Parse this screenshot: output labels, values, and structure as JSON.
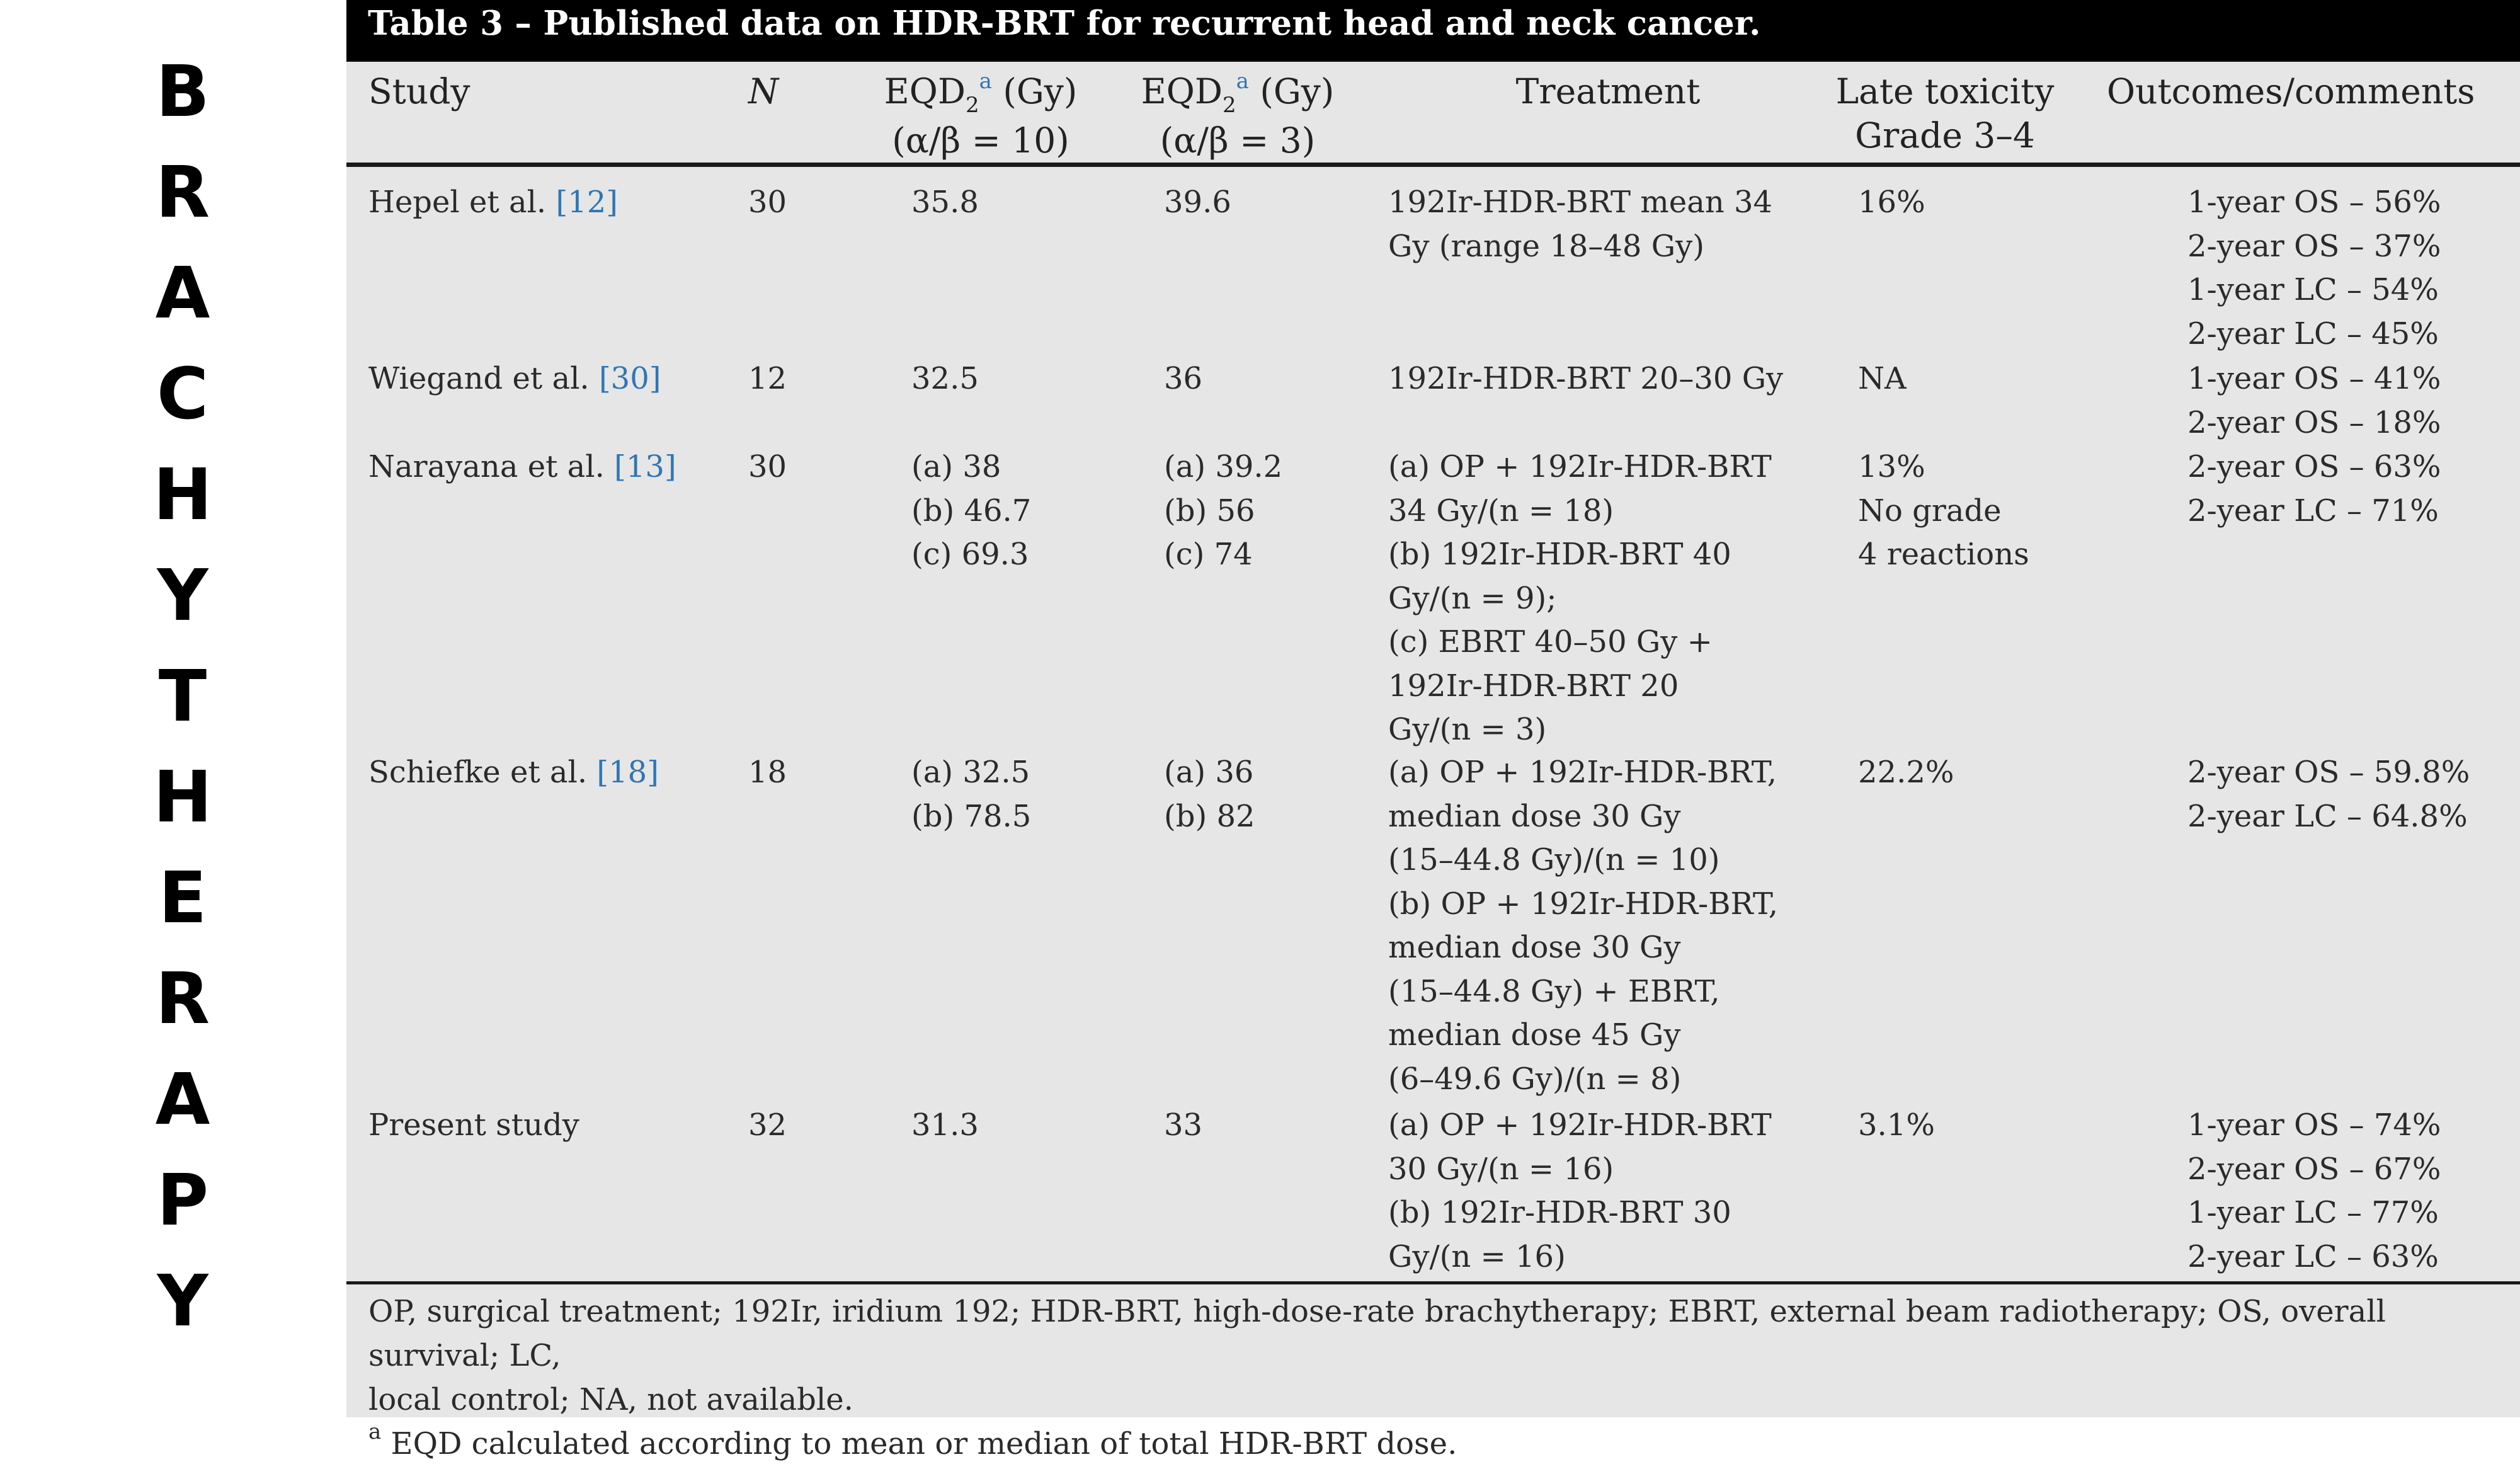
{
  "side_label": [
    "B",
    "R",
    "A",
    "C",
    "H",
    "Y",
    "T",
    "H",
    "E",
    "R",
    "A",
    "P",
    "Y"
  ],
  "table": {
    "title": "Table 3 – Published data on HDR-BRT for recurrent head and neck cancer.",
    "headers": {
      "study": "Study",
      "n": "N",
      "eqd_a": {
        "base": "EQD",
        "sub": "2",
        "sup": "a",
        "unit": " (Gy)",
        "param": "(α/β = 10)"
      },
      "eqd_b": {
        "base": "EQD",
        "sub": "2",
        "sup": "a",
        "unit": " (Gy)",
        "param": "(α/β = 3)"
      },
      "treatment": "Treatment",
      "toxicity": [
        "Late toxicity",
        "Grade 3–4"
      ],
      "outcomes": "Outcomes/comments"
    },
    "rows": [
      {
        "study": "Hepel et al.",
        "ref": "[12]",
        "n": "30",
        "eqd10": [
          "35.8"
        ],
        "eqd3": [
          "39.6"
        ],
        "treatment": [
          "192Ir-HDR-BRT mean 34",
          "Gy (range 18–48 Gy)"
        ],
        "toxicity": [
          "16%"
        ],
        "outcomes": [
          "1-year OS – 56%",
          "2-year OS – 37%",
          "1-year LC – 54%",
          "2-year LC – 45%"
        ]
      },
      {
        "study": "Wiegand et al.",
        "ref": "[30]",
        "n": "12",
        "eqd10": [
          "32.5"
        ],
        "eqd3": [
          "36"
        ],
        "treatment": [
          "192Ir-HDR-BRT 20–30 Gy"
        ],
        "toxicity": [
          "NA"
        ],
        "outcomes": [
          "1-year OS – 41%",
          "2-year OS – 18%"
        ]
      },
      {
        "study": "Narayana et al.",
        "ref": "[13]",
        "n": "30",
        "eqd10": [
          "(a) 38",
          "(b) 46.7",
          "(c) 69.3"
        ],
        "eqd3": [
          "(a) 39.2",
          "(b) 56",
          "(c) 74"
        ],
        "treatment": [
          "(a) OP + 192Ir-HDR-BRT",
          "34 Gy/(n = 18)",
          "(b) 192Ir-HDR-BRT 40",
          "Gy/(n = 9);",
          "(c) EBRT 40–50 Gy +",
          "192Ir-HDR-BRT 20",
          "Gy/(n = 3)"
        ],
        "toxicity": [
          "13%",
          "No grade",
          "4 reactions"
        ],
        "outcomes": [
          "2-year OS – 63%",
          "2-year LC – 71%"
        ]
      },
      {
        "study": "Schiefke et al.",
        "ref": "[18]",
        "n": "18",
        "eqd10": [
          "(a) 32.5",
          "(b) 78.5"
        ],
        "eqd3": [
          "(a) 36",
          "(b) 82"
        ],
        "treatment": [
          "(a) OP + 192Ir-HDR-BRT,",
          "median dose 30 Gy",
          "(15–44.8 Gy)/(n = 10)",
          "(b) OP + 192Ir-HDR-BRT,",
          "median dose 30 Gy",
          "(15–44.8 Gy) + EBRT,",
          "median dose 45 Gy",
          "(6–49.6 Gy)/(n = 8)"
        ],
        "toxicity": [
          "22.2%"
        ],
        "outcomes": [
          "2-year OS – 59.8%",
          "2-year LC – 64.8%"
        ]
      },
      {
        "study": "Present study",
        "ref": "",
        "n": "32",
        "eqd10": [
          "31.3"
        ],
        "eqd3": [
          "33"
        ],
        "treatment": [
          "(a) OP + 192Ir-HDR-BRT",
          "30 Gy/(n = 16)",
          "(b) 192Ir-HDR-BRT 30",
          "Gy/(n = 16)"
        ],
        "toxicity": [
          "3.1%"
        ],
        "outcomes": [
          "1-year OS – 74%",
          "2-year OS – 67%",
          "1-year LC – 77%",
          "2-year LC – 63%"
        ]
      }
    ],
    "footnote": [
      "OP, surgical treatment; 192Ir, iridium 192; HDR-BRT, high-dose-rate brachytherapy; EBRT, external beam radiotherapy; OS, overall survival; LC,",
      "local control; NA, not available."
    ],
    "footnote_a": {
      "marker": "a",
      "text": "EQD calculated according to mean or median of total HDR-BRT dose."
    }
  }
}
